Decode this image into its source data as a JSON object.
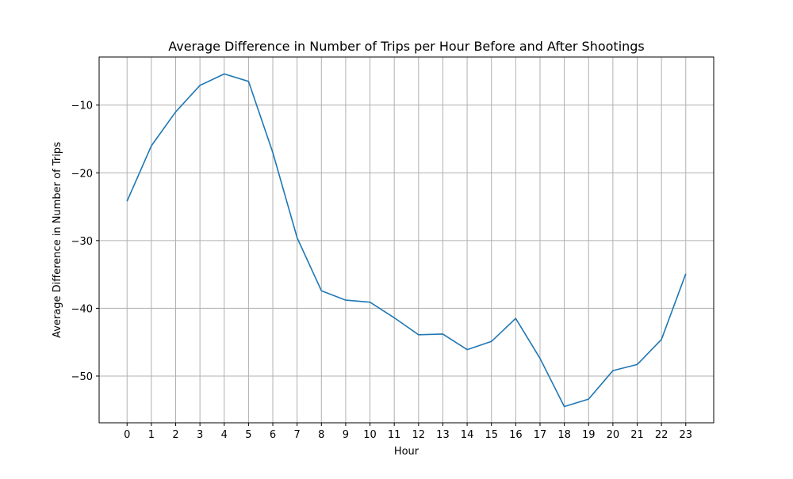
{
  "chart_data": {
    "type": "line",
    "title": "Average Difference in Number of Trips per Hour Before and After Shootings",
    "xlabel": "Hour",
    "ylabel": "Average Difference in Number of Trips",
    "x": [
      0,
      1,
      2,
      3,
      4,
      5,
      6,
      7,
      8,
      9,
      10,
      11,
      12,
      13,
      14,
      15,
      16,
      17,
      18,
      19,
      20,
      21,
      22,
      23
    ],
    "x_tick_labels": [
      "0",
      "1",
      "2",
      "3",
      "4",
      "5",
      "6",
      "7",
      "8",
      "9",
      "10",
      "11",
      "12",
      "13",
      "14",
      "15",
      "16",
      "17",
      "18",
      "19",
      "20",
      "21",
      "22",
      "23"
    ],
    "y_ticks": [
      -10,
      -20,
      -30,
      -40,
      -50
    ],
    "y_tick_labels": [
      "−10",
      "−20",
      "−30",
      "−40",
      "−50"
    ],
    "xlim": [
      -1.15,
      24.15
    ],
    "ylim": [
      -56.9,
      -2.9
    ],
    "grid": true,
    "series": [
      {
        "color": "#1f77b4",
        "values": [
          -24.2,
          -16.0,
          -11.0,
          -7.1,
          -5.4,
          -6.5,
          -17.0,
          -29.6,
          -37.4,
          -38.8,
          -39.1,
          -41.4,
          -43.9,
          -43.8,
          -46.1,
          -44.9,
          -41.5,
          -47.4,
          -54.5,
          -53.4,
          -49.2,
          -48.3,
          -44.6,
          -34.9
        ]
      }
    ]
  }
}
